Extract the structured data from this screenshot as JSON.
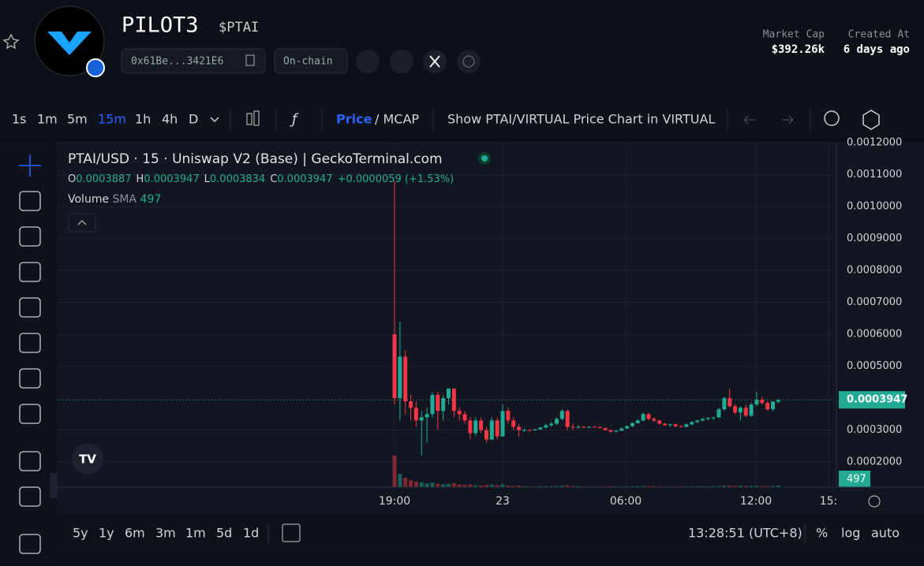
{
  "header": {
    "name": "PILOT3",
    "ticker": "$PTAI",
    "address": "0x61Be...3421E6",
    "chain": "On-chain",
    "stats": [
      {
        "label": "Market Cap",
        "value": "$392.26k"
      },
      {
        "label": "Created At",
        "value": "6 days ago"
      }
    ]
  },
  "toolbar": {
    "intervals": [
      "1s",
      "1m",
      "5m",
      "15m",
      "1h",
      "4h",
      "D"
    ],
    "price": "Price",
    "mcap": "/ MCAP",
    "show_virtual": "Show PTAI/VIRTUAL Price Chart in VIRTUAL"
  },
  "chart_data": {
    "type": "candlestick",
    "title": "PTAI/USD · 15 · Uniswap V2 (Base) | GeckoTerminal.com",
    "legend_labels": [
      "O",
      "H",
      "L",
      "C"
    ],
    "change": "+0.0000059 (+1.53%)",
    "volume_label": "Volume",
    "sma_label": "SMA",
    "volume_sma": 497,
    "up_color": "#22ab94",
    "down_color": "#f23645",
    "xticks": [
      "19:00",
      "23",
      "06:00",
      "12:00",
      "15:"
    ],
    "ylim": [
      0.000121,
      0.001203
    ],
    "yticks": [
      {
        "value": 0.0002,
        "label": "0.0002000"
      },
      {
        "value": 0.0003,
        "label": "0.0003000"
      },
      {
        "value": 0.0005,
        "label": "0.0005000"
      },
      {
        "value": 0.0006,
        "label": "0.0006000"
      },
      {
        "value": 0.0007,
        "label": "0.0007000"
      },
      {
        "value": 0.0008,
        "label": "0.0008000"
      },
      {
        "value": 0.0009,
        "label": "0.0009000"
      },
      {
        "value": 0.001,
        "label": "0.0010000"
      },
      {
        "value": 0.0011,
        "label": "0.0011000"
      },
      {
        "value": 0.0012,
        "label": "0.0012000"
      }
    ],
    "open": [
      0.0006,
      0.0004,
      0.00053,
      0.00039,
      0.00037,
      0.00033,
      0.00034,
      0.00035,
      0.00041,
      0.00036,
      0.0004,
      0.00043,
      0.00036,
      0.00035,
      0.00033,
      0.00029,
      0.00033,
      0.0003,
      0.00027,
      0.00033,
      0.00028,
      0.00036,
      0.00033,
      0.00031,
      0.0003,
      0.0003,
      0.000299,
      0.000302,
      0.000308,
      0.000315,
      0.00032,
      0.000335,
      0.00036,
      0.00031,
      0.000308,
      0.00031,
      0.000308,
      0.00031,
      0.000309,
      0.000306,
      0.0003,
      0.000295,
      0.000298,
      0.000305,
      0.000312,
      0.000322,
      0.00033,
      0.00035,
      0.000335,
      0.00033,
      0.00032,
      0.000315,
      0.000318,
      0.000312,
      0.00031,
      0.000318,
      0.000325,
      0.00033,
      0.000335,
      0.000338,
      0.00034,
      0.000365,
      0.0004,
      0.000375,
      0.000355,
      0.00037,
      0.000345,
      0.00038,
      0.000395,
      0.000385,
      0.000365,
      0.0003887
    ],
    "high": [
      0.00108,
      0.00064,
      0.00055,
      0.00041,
      0.00039,
      0.00036,
      0.00037,
      0.00042,
      0.00042,
      0.00041,
      0.00043,
      0.00043,
      0.00037,
      0.00036,
      0.00034,
      0.00034,
      0.00034,
      0.00031,
      0.00034,
      0.00034,
      0.00038,
      0.00037,
      0.00034,
      0.00032,
      0.000305,
      0.000303,
      0.000304,
      0.00031,
      0.00032,
      0.000325,
      0.00034,
      0.000365,
      0.000365,
      0.00032,
      0.000315,
      0.000312,
      0.000312,
      0.000313,
      0.000312,
      0.000308,
      0.000302,
      0.0003,
      0.000308,
      0.000315,
      0.000325,
      0.000335,
      0.000355,
      0.000355,
      0.00034,
      0.000332,
      0.000322,
      0.00032,
      0.00032,
      0.000315,
      0.00032,
      0.000328,
      0.000332,
      0.000338,
      0.00034,
      0.000342,
      0.00037,
      0.000405,
      0.00043,
      0.00038,
      0.000375,
      0.00038,
      0.000385,
      0.00042,
      0.000405,
      0.00039,
      0.00039,
      0.0003947
    ],
    "low": [
      0.00038,
      0.00033,
      0.00035,
      0.00033,
      0.00031,
      0.00022,
      0.00026,
      0.00034,
      0.0003,
      0.00033,
      0.00038,
      0.00034,
      0.00033,
      0.00032,
      0.00027,
      0.00028,
      0.00029,
      0.00026,
      0.00027,
      0.00027,
      0.00028,
      0.00032,
      0.0003,
      0.00028,
      0.000295,
      0.000298,
      0.000298,
      0.0003,
      0.000305,
      0.00031,
      0.000315,
      0.00033,
      0.0003,
      0.0003,
      0.000305,
      0.000306,
      0.000306,
      0.000307,
      0.000305,
      0.000298,
      0.000292,
      0.000293,
      0.000297,
      0.000304,
      0.00031,
      0.00032,
      0.000328,
      0.00033,
      0.000325,
      0.000318,
      0.000312,
      0.00031,
      0.00031,
      0.000308,
      0.000309,
      0.000315,
      0.000322,
      0.000327,
      0.00033,
      0.000332,
      0.000338,
      0.00036,
      0.00037,
      0.00035,
      0.00033,
      0.00034,
      0.00034,
      0.000375,
      0.00038,
      0.00036,
      0.00036,
      0.0003834
    ],
    "close": [
      0.0004,
      0.00053,
      0.00039,
      0.00037,
      0.00033,
      0.00034,
      0.00035,
      0.00041,
      0.00036,
      0.0004,
      0.00043,
      0.00036,
      0.00035,
      0.00033,
      0.00029,
      0.00033,
      0.0003,
      0.00027,
      0.00033,
      0.00028,
      0.00036,
      0.00033,
      0.00031,
      0.0003,
      0.0003,
      0.000299,
      0.000302,
      0.000308,
      0.000315,
      0.00032,
      0.000335,
      0.00036,
      0.00031,
      0.000308,
      0.00031,
      0.000308,
      0.00031,
      0.000309,
      0.000306,
      0.0003,
      0.000295,
      0.000298,
      0.000305,
      0.000312,
      0.000322,
      0.00033,
      0.00035,
      0.000335,
      0.00033,
      0.00032,
      0.000315,
      0.000318,
      0.000312,
      0.00031,
      0.000318,
      0.000325,
      0.00033,
      0.000335,
      0.000338,
      0.00034,
      0.000365,
      0.0004,
      0.000375,
      0.000355,
      0.00037,
      0.000345,
      0.00038,
      0.000395,
      0.000385,
      0.000365,
      0.0003887,
      0.0003947
    ],
    "volume": [
      10000,
      4200,
      3000,
      2200,
      1800,
      1500,
      1200,
      1400,
      1100,
      900,
      1000,
      1300,
      800,
      700,
      900,
      600,
      500,
      700,
      800,
      600,
      900,
      500,
      400,
      500,
      300,
      250,
      250,
      300,
      350,
      300,
      400,
      500,
      600,
      350,
      300,
      250,
      250,
      220,
      220,
      260,
      300,
      250,
      280,
      300,
      320,
      350,
      400,
      380,
      300,
      280,
      260,
      240,
      240,
      250,
      270,
      290,
      300,
      310,
      300,
      320,
      420,
      500,
      520,
      450,
      480,
      400,
      420,
      430,
      380,
      360,
      420,
      497
    ]
  },
  "footer": {
    "ranges": [
      "5y",
      "1y",
      "6m",
      "3m",
      "1m",
      "5d",
      "1d"
    ],
    "time": "13:28:51 (UTC+8)",
    "options": [
      "%",
      "log",
      "auto"
    ]
  }
}
